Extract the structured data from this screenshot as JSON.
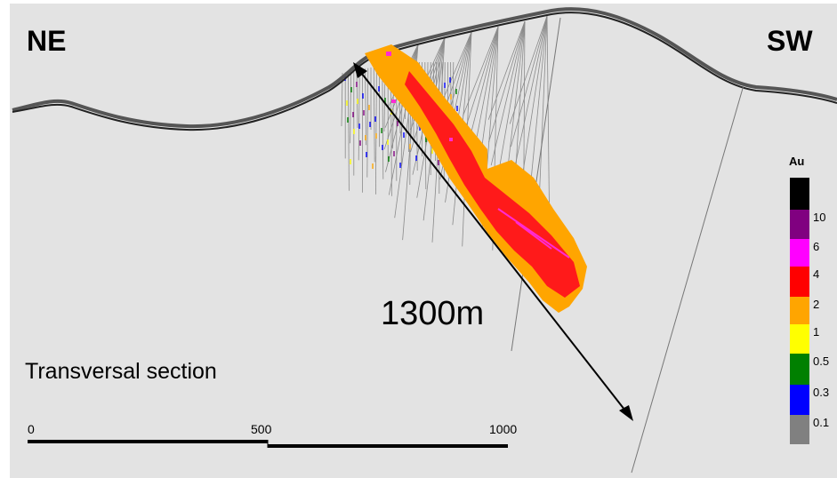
{
  "labels": {
    "left_direction": "NE",
    "right_direction": "SW",
    "distance": "1300m",
    "section": "Transversal section"
  },
  "scale_bar": {
    "ticks": [
      "0",
      "500",
      "1000"
    ]
  },
  "legend": {
    "title": "Au",
    "bins": [
      {
        "color": "#000000",
        "label": ""
      },
      {
        "color": "#800080",
        "label": "10"
      },
      {
        "color": "#ff00ff",
        "label": "6"
      },
      {
        "color": "#ff0000",
        "label": "4"
      },
      {
        "color": "#ffa500",
        "label": "2"
      },
      {
        "color": "#ffff00",
        "label": "1"
      },
      {
        "color": "#008000",
        "label": "0.5"
      },
      {
        "color": "#0000ff",
        "label": "0.3"
      },
      {
        "color": "#808080",
        "label": "0.1"
      }
    ]
  }
}
